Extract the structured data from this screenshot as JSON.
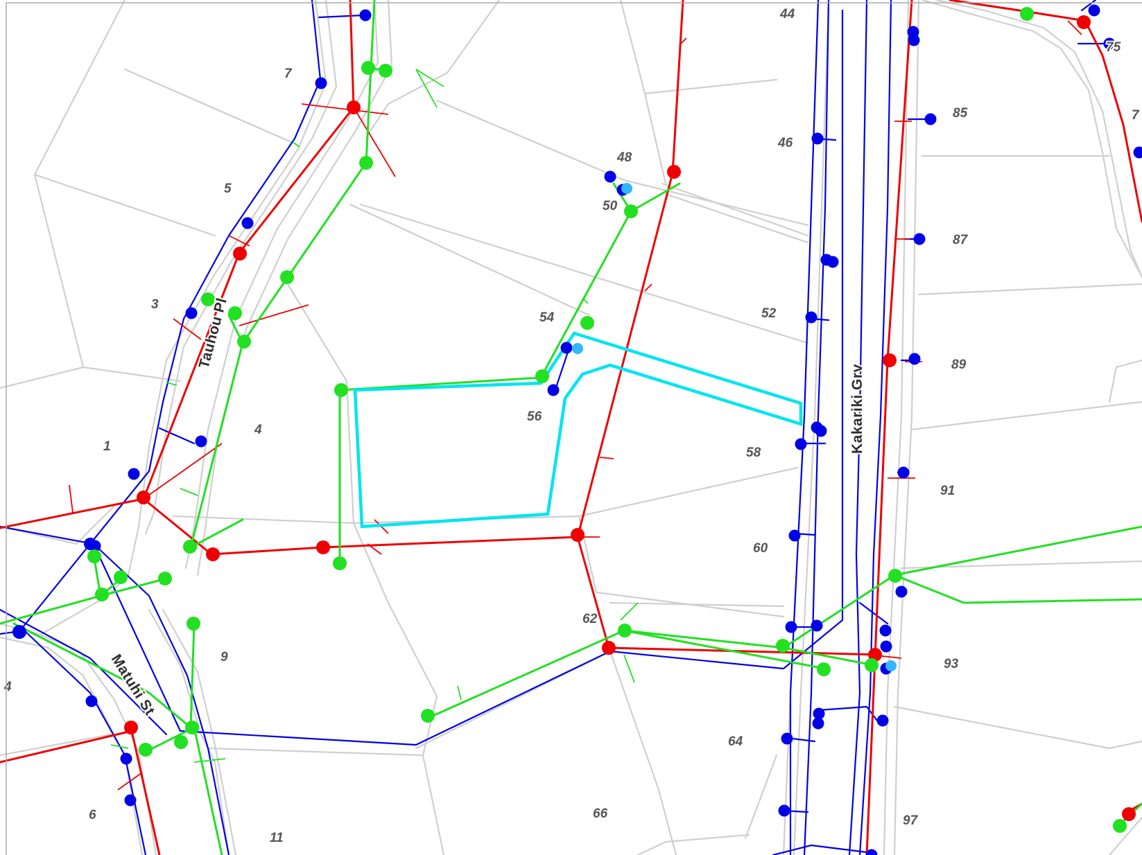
{
  "map": {
    "colors": {
      "water_main": "#0000e6",
      "sewer_main": "#ee0000",
      "stormwater_main": "#22e022",
      "service_point_light": "#33b5ff",
      "selected_parcel": "#00e5f0",
      "parcel_boundary": "#cfcfcf",
      "background": "#ffffff"
    },
    "streets": {
      "tauhou": "Tauhou Pl",
      "matuhi": "Matuhi St",
      "kakariki": "Kakariki Grv"
    },
    "parcels": {
      "p7": "7",
      "p5": "5",
      "p3": "3",
      "p1": "1",
      "p4": "4",
      "p4w": "4",
      "p6": "6",
      "p9": "9",
      "p11": "11",
      "p44": "44",
      "p46": "46",
      "p48": "48",
      "p50": "50",
      "p52": "52",
      "p54": "54",
      "p56": "56",
      "p58": "58",
      "p60": "60",
      "p62": "62",
      "p64": "64",
      "p66": "66",
      "p75": "75",
      "p85": "85",
      "p87": "87",
      "p89": "89",
      "p91": "91",
      "p93": "93",
      "p97": "97",
      "p7e": "7"
    }
  }
}
